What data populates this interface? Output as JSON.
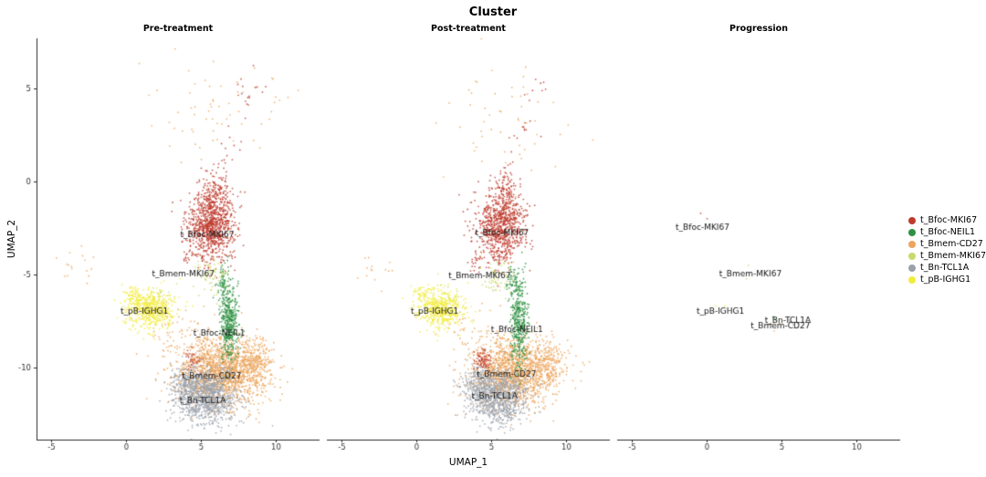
{
  "chart_data": {
    "type": "scatter",
    "title": "Cluster",
    "xlabel": "UMAP_1",
    "ylabel": "UMAP_2",
    "xlim": [
      -6,
      12.9
    ],
    "ylim": [
      -13.9,
      7.7
    ],
    "x_ticks": [
      -5,
      0,
      5,
      10
    ],
    "y_ticks": [
      5,
      0,
      -5,
      -10
    ],
    "grid": false,
    "facets": [
      "Pre-treatment",
      "Post-treatment",
      "Progression"
    ],
    "legend": {
      "position": "right",
      "entries": [
        {
          "label": "t_Bfoc-MKI67",
          "color": "#BE3A2C"
        },
        {
          "label": "t_Bfoc-NEIL1",
          "color": "#2E9142"
        },
        {
          "label": "t_Bmem-CD27",
          "color": "#ECA55D"
        },
        {
          "label": "t_Bmem-MKI67",
          "color": "#CBD96C"
        },
        {
          "label": "t_Bn-TCL1A",
          "color": "#9BA1AB"
        },
        {
          "label": "t_pB-IGHG1",
          "color": "#F2EC3F"
        }
      ]
    },
    "point_size": 0.9,
    "point_alpha": 0.8,
    "clusters": [
      {
        "cluster": "t_Bmem-CD27",
        "cx": 6.4,
        "cy": -10.2,
        "sdx": 1.45,
        "sdy": 0.9,
        "counts": [
          1600,
          1450,
          0
        ]
      },
      {
        "cluster": "t_Bmem-CD27",
        "cx": 8.7,
        "cy": -9.8,
        "sdx": 0.55,
        "sdy": 0.6,
        "counts": [
          180,
          160,
          0
        ]
      },
      {
        "cluster": "t_Bmem-CD27",
        "cx": 6.0,
        "cy": 3.4,
        "sdx": 2.3,
        "sdy": 1.9,
        "counts": [
          65,
          55,
          0
        ]
      },
      {
        "cluster": "t_Bmem-CD27",
        "cx": -3.2,
        "cy": -4.7,
        "sdx": 0.8,
        "sdy": 0.45,
        "counts": [
          16,
          14,
          0
        ]
      },
      {
        "cluster": "t_Bmem-CD27",
        "cx": 3.3,
        "cy": -8.0,
        "sdx": 1.1,
        "sdy": 0.7,
        "counts": [
          45,
          40,
          0
        ]
      },
      {
        "cluster": "t_Bmem-CD27",
        "cx": 4.9,
        "cy": -7.9,
        "sdx": 0.4,
        "sdy": 0.3,
        "counts": [
          0,
          0,
          3
        ]
      },
      {
        "cluster": "t_Bn-TCL1A",
        "cx": 5.35,
        "cy": -11.6,
        "sdx": 1.0,
        "sdy": 0.72,
        "counts": [
          1000,
          900,
          0
        ]
      },
      {
        "cluster": "t_Bn-TCL1A",
        "cx": 4.1,
        "cy": -10.9,
        "sdx": 0.5,
        "sdy": 0.5,
        "counts": [
          150,
          130,
          0
        ]
      },
      {
        "cluster": "t_Bn-TCL1A",
        "cx": 5.3,
        "cy": -7.4,
        "sdx": 0.3,
        "sdy": 0.2,
        "counts": [
          0,
          0,
          3
        ]
      },
      {
        "cluster": "t_Bfoc-MKI67",
        "cx": 5.6,
        "cy": -2.4,
        "sdx": 0.8,
        "sdy": 0.95,
        "counts": [
          900,
          800,
          0
        ]
      },
      {
        "cluster": "t_Bfoc-MKI67",
        "cx": 6.0,
        "cy": -0.7,
        "sdx": 0.45,
        "sdy": 0.7,
        "counts": [
          130,
          110,
          0
        ]
      },
      {
        "cluster": "t_Bfoc-MKI67",
        "line": [
          6.3,
          0.3,
          8.6,
          6.2
        ],
        "sdx": 0.45,
        "sdy": 0.45,
        "counts": [
          28,
          22,
          0
        ]
      },
      {
        "cluster": "t_Bfoc-MKI67",
        "cx": 4.45,
        "cy": -9.6,
        "sdx": 0.28,
        "sdy": 0.3,
        "counts": [
          30,
          70,
          0
        ]
      },
      {
        "cluster": "t_Bfoc-MKI67",
        "cx": 4.0,
        "cy": -4.2,
        "sdx": 0.2,
        "sdy": 0.25,
        "counts": [
          12,
          18,
          0
        ]
      },
      {
        "cluster": "t_Bfoc-MKI67",
        "cx": -0.3,
        "cy": -2.2,
        "sdx": 0.25,
        "sdy": 0.2,
        "counts": [
          0,
          0,
          2
        ]
      },
      {
        "cluster": "t_Bfoc-NEIL1",
        "cx": 6.85,
        "cy": -7.6,
        "sdx": 0.3,
        "sdy": 1.15,
        "counts": [
          420,
          380,
          0
        ]
      },
      {
        "cluster": "t_Bfoc-NEIL1",
        "cx": 6.45,
        "cy": -5.4,
        "sdx": 0.22,
        "sdy": 0.5,
        "counts": [
          60,
          55,
          0
        ]
      },
      {
        "cluster": "t_Bfoc-NEIL1",
        "cx": 4.7,
        "cy": -7.3,
        "sdx": 0.2,
        "sdy": 0.15,
        "counts": [
          0,
          0,
          2
        ]
      },
      {
        "cluster": "t_Bmem-MKI67",
        "cx": 5.6,
        "cy": -5.1,
        "sdx": 0.55,
        "sdy": 0.5,
        "counts": [
          70,
          60,
          0
        ]
      },
      {
        "cluster": "t_Bmem-MKI67",
        "cx": 2.3,
        "cy": -6.1,
        "sdx": 0.45,
        "sdy": 0.3,
        "counts": [
          18,
          14,
          0
        ]
      },
      {
        "cluster": "t_Bmem-MKI67",
        "cx": 2.9,
        "cy": -4.8,
        "sdx": 0.3,
        "sdy": 0.2,
        "counts": [
          0,
          0,
          2
        ]
      },
      {
        "cluster": "t_pB-IGHG1",
        "cx": 1.6,
        "cy": -6.9,
        "sdx": 0.8,
        "sdy": 0.5,
        "counts": [
          560,
          500,
          0
        ]
      },
      {
        "cluster": "t_pB-IGHG1",
        "cx": 0.35,
        "cy": -6.1,
        "sdx": 0.3,
        "sdy": 0.22,
        "counts": [
          45,
          38,
          0
        ]
      },
      {
        "cluster": "t_pB-IGHG1",
        "cx": 1.0,
        "cy": -6.9,
        "sdx": 0.2,
        "sdy": 0.15,
        "counts": [
          0,
          0,
          2
        ]
      }
    ],
    "annotations": [
      {
        "facet": 0,
        "label": "t_Bfoc-MKI67",
        "x": 5.4,
        "y": -2.9
      },
      {
        "facet": 0,
        "label": "t_Bmem-MKI67",
        "x": 3.8,
        "y": -5.0
      },
      {
        "facet": 0,
        "label": "t_pB-IGHG1",
        "x": 1.2,
        "y": -7.0
      },
      {
        "facet": 0,
        "label": "t_Bfoc-NEIL1",
        "x": 6.2,
        "y": -8.2
      },
      {
        "facet": 0,
        "label": "t_Bmem-CD27",
        "x": 5.7,
        "y": -10.5
      },
      {
        "facet": 0,
        "label": "t_Bn-TCL1A",
        "x": 5.1,
        "y": -11.8
      },
      {
        "facet": 1,
        "label": "t_Bfoc-MKI67",
        "x": 5.7,
        "y": -2.8
      },
      {
        "facet": 1,
        "label": "t_Bmem-MKI67",
        "x": 4.2,
        "y": -5.1
      },
      {
        "facet": 1,
        "label": "t_pB-IGHG1",
        "x": 1.2,
        "y": -7.0
      },
      {
        "facet": 1,
        "label": "t_Bfoc-NEIL1",
        "x": 6.7,
        "y": -8.0
      },
      {
        "facet": 1,
        "label": "t_Bmem-CD27",
        "x": 6.0,
        "y": -10.4
      },
      {
        "facet": 1,
        "label": "t_Bn-TCL1A",
        "x": 5.2,
        "y": -11.6
      },
      {
        "facet": 2,
        "label": "t_Bfoc-MKI67",
        "x": -0.3,
        "y": -2.5
      },
      {
        "facet": 2,
        "label": "t_Bmem-MKI67",
        "x": 2.9,
        "y": -5.0
      },
      {
        "facet": 2,
        "label": "t_pB-IGHG1",
        "x": 0.9,
        "y": -7.0
      },
      {
        "facet": 2,
        "label": "t_Bn-TCL1A",
        "x": 5.4,
        "y": -7.5
      },
      {
        "facet": 2,
        "label": "t_Bmem-CD27",
        "x": 4.9,
        "y": -7.8
      }
    ]
  }
}
